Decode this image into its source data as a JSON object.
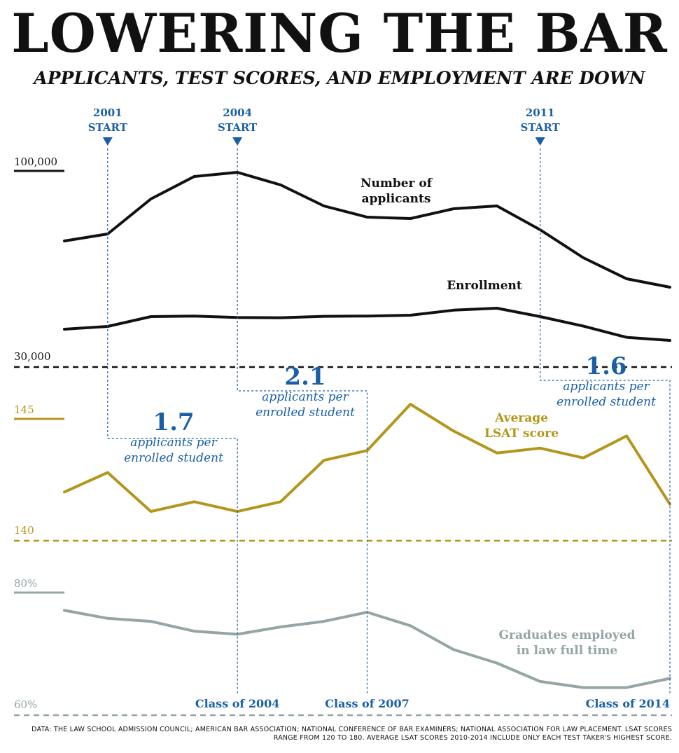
{
  "title": "LOWERING THE BAR",
  "subtitle": "APPLICANTS, TEST SCORES, AND EMPLOYMENT ARE DOWN",
  "footer": "DATA: THE LAW SCHOOL ADMISSION COUNCIL; AMERICAN BAR ASSOCIATION; NATIONAL CONFERENCE OF BAR EXAMINERS; NATIONAL ASSOCIATION FOR LAW PLACEMENT. LSAT SCORES RANGE FROM 120 TO 180. AVERAGE LSAT SCORES 2010-2014 INCLUDE ONLY EACH TEST TAKER'S HIGHEST SCORE.",
  "colors": {
    "black": "#111111",
    "blue": "#1a5fa6",
    "gold": "#b3961b",
    "gray": "#93a6a5"
  },
  "chart_data": [
    {
      "type": "line",
      "name": "applicants-enrollment",
      "x": [
        2000,
        2001,
        2002,
        2003,
        2004,
        2005,
        2006,
        2007,
        2008,
        2009,
        2010,
        2011,
        2012,
        2013,
        2014
      ],
      "ylim": [
        30000,
        100000
      ],
      "tick_labels": [
        "100,000",
        "30,000"
      ],
      "series": [
        {
          "name": "Number of applicants",
          "label_lines": [
            "Number of",
            "applicants"
          ],
          "values": [
            75000,
            77500,
            90000,
            98000,
            99500,
            95000,
            87500,
            83500,
            83000,
            86500,
            87500,
            79000,
            69000,
            61500,
            58500
          ]
        },
        {
          "name": "Enrollment",
          "label_lines": [
            "Enrollment"
          ],
          "values": [
            43500,
            44500,
            48000,
            48200,
            47700,
            47600,
            48100,
            48200,
            48500,
            50300,
            51000,
            48000,
            44600,
            40600,
            39500
          ]
        }
      ]
    },
    {
      "type": "line",
      "name": "lsat",
      "x": [
        2000,
        2001,
        2002,
        2003,
        2004,
        2005,
        2006,
        2007,
        2008,
        2009,
        2010,
        2011,
        2012,
        2013,
        2014
      ],
      "ylim": [
        140,
        145
      ],
      "tick_labels": [
        "145",
        "140"
      ],
      "series": [
        {
          "name": "Average LSAT score",
          "label_lines": [
            "Average",
            "LSAT score"
          ],
          "values": [
            142.0,
            142.8,
            141.2,
            141.6,
            141.2,
            141.6,
            143.3,
            143.7,
            145.6,
            144.5,
            143.6,
            143.8,
            143.4,
            144.3,
            141.5
          ]
        }
      ]
    },
    {
      "type": "line",
      "name": "employment",
      "x": [
        2000,
        2001,
        2002,
        2003,
        2004,
        2005,
        2006,
        2007,
        2008,
        2009,
        2010,
        2011,
        2012,
        2013,
        2014
      ],
      "ylim": [
        60,
        80
      ],
      "tick_labels": [
        "80%",
        "60%"
      ],
      "series": [
        {
          "name": "Graduates employed in law full time",
          "label_lines": [
            "Graduates employed",
            "in law full time"
          ],
          "values": [
            77.1,
            75.8,
            75.3,
            73.7,
            73.2,
            74.4,
            75.3,
            76.8,
            74.6,
            70.7,
            68.5,
            65.5,
            64.5,
            64.5,
            66.0
          ]
        }
      ]
    }
  ],
  "annotations": {
    "starts": [
      {
        "year_label": "2001",
        "start_label": "START",
        "x": 2001
      },
      {
        "year_label": "2004",
        "start_label": "START",
        "x": 2004
      },
      {
        "year_label": "2011",
        "start_label": "START",
        "x": 2011
      }
    ],
    "classes": [
      {
        "label": "Class of 2004",
        "x": 2004
      },
      {
        "label": "Class of 2007",
        "x": 2007
      },
      {
        "label": "Class of 2014",
        "x": 2014
      }
    ],
    "ratios": [
      {
        "value": "1.7",
        "line1": "applicants per",
        "line2": "enrolled student",
        "from": 2001,
        "to": 2004
      },
      {
        "value": "2.1",
        "line1": "applicants per",
        "line2": "enrolled student",
        "from": 2004,
        "to": 2007
      },
      {
        "value": "1.6",
        "line1": "applicants per",
        "line2": "enrolled student",
        "from": 2011,
        "to": 2014
      }
    ]
  }
}
